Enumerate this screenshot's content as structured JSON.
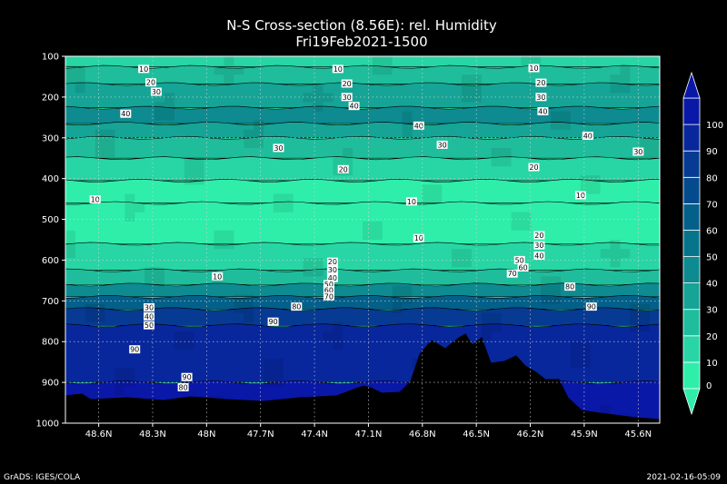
{
  "chart_data": {
    "type": "heatmap",
    "title": "N-S Cross-section (8.56E): rel. Humidity",
    "subtitle": "Fri19Feb2021-1500",
    "x_tick_labels": [
      "48.6N",
      "48.3N",
      "48N",
      "47.7N",
      "47.4N",
      "47.1N",
      "46.8N",
      "46.5N",
      "46.2N",
      "45.9N",
      "45.6N"
    ],
    "y_tick_labels": [
      "100",
      "200",
      "300",
      "400",
      "500",
      "600",
      "700",
      "800",
      "900",
      "1000"
    ],
    "ylim": [
      100,
      1000
    ],
    "y_inverted": true,
    "grid": true,
    "colorbar": {
      "ticks": [
        "0",
        "10",
        "20",
        "30",
        "40",
        "50",
        "60",
        "70",
        "80",
        "90",
        "100"
      ],
      "colors": [
        "#2eeeaa",
        "#27d6a4",
        "#1fbd9c",
        "#15a496",
        "#0d8b90",
        "#06758c",
        "#03608a",
        "#044b8e",
        "#063a93",
        "#08279c",
        "#0a18a8"
      ],
      "extend_both": true
    },
    "layers": [
      {
        "top": 100,
        "bottom": 126,
        "level": 1
      },
      {
        "top": 126,
        "bottom": 168,
        "level": 2
      },
      {
        "top": 168,
        "bottom": 226,
        "level": 3
      },
      {
        "top": 226,
        "bottom": 265,
        "level": 4
      },
      {
        "top": 265,
        "bottom": 300,
        "level": 3
      },
      {
        "top": 300,
        "bottom": 350,
        "level": 2
      },
      {
        "top": 350,
        "bottom": 405,
        "level": 1
      },
      {
        "top": 405,
        "bottom": 460,
        "level": 0
      },
      {
        "top": 460,
        "bottom": 560,
        "level": 0
      },
      {
        "top": 560,
        "bottom": 625,
        "level": 1
      },
      {
        "top": 625,
        "bottom": 660,
        "level": 2
      },
      {
        "top": 660,
        "bottom": 690,
        "level": 4
      },
      {
        "top": 690,
        "bottom": 720,
        "level": 6
      },
      {
        "top": 720,
        "bottom": 760,
        "level": 8
      },
      {
        "top": 760,
        "bottom": 900,
        "level": 9
      },
      {
        "top": 900,
        "bottom": 1000,
        "level": 10
      }
    ],
    "contour_labels": [
      {
        "text": "10",
        "x": 48.35,
        "p": 132
      },
      {
        "text": "10",
        "x": 47.27,
        "p": 132
      },
      {
        "text": "10",
        "x": 46.18,
        "p": 130
      },
      {
        "text": "20",
        "x": 48.31,
        "p": 165
      },
      {
        "text": "30",
        "x": 48.28,
        "p": 188
      },
      {
        "text": "20",
        "x": 47.22,
        "p": 168
      },
      {
        "text": "30",
        "x": 47.22,
        "p": 201
      },
      {
        "text": "40",
        "x": 47.18,
        "p": 223
      },
      {
        "text": "20",
        "x": 46.14,
        "p": 166
      },
      {
        "text": "30",
        "x": 46.14,
        "p": 201
      },
      {
        "text": "40",
        "x": 46.13,
        "p": 236
      },
      {
        "text": "40",
        "x": 48.45,
        "p": 242
      },
      {
        "text": "40",
        "x": 46.82,
        "p": 271
      },
      {
        "text": "30",
        "x": 46.69,
        "p": 318
      },
      {
        "text": "40",
        "x": 45.88,
        "p": 296
      },
      {
        "text": "30",
        "x": 45.6,
        "p": 335
      },
      {
        "text": "30",
        "x": 47.6,
        "p": 326
      },
      {
        "text": "20",
        "x": 47.24,
        "p": 378
      },
      {
        "text": "20",
        "x": 46.18,
        "p": 373
      },
      {
        "text": "10",
        "x": 48.62,
        "p": 452
      },
      {
        "text": "10",
        "x": 46.86,
        "p": 457
      },
      {
        "text": "10",
        "x": 45.92,
        "p": 442
      },
      {
        "text": "10",
        "x": 46.82,
        "p": 547
      },
      {
        "text": "20",
        "x": 46.15,
        "p": 540
      },
      {
        "text": "30",
        "x": 46.15,
        "p": 565
      },
      {
        "text": "40",
        "x": 46.15,
        "p": 590
      },
      {
        "text": "10",
        "x": 47.94,
        "p": 641
      },
      {
        "text": "20",
        "x": 47.3,
        "p": 605
      },
      {
        "text": "30",
        "x": 47.3,
        "p": 625
      },
      {
        "text": "40",
        "x": 47.3,
        "p": 645
      },
      {
        "text": "50",
        "x": 47.32,
        "p": 660
      },
      {
        "text": "60",
        "x": 47.32,
        "p": 675
      },
      {
        "text": "70",
        "x": 47.32,
        "p": 690
      },
      {
        "text": "80",
        "x": 47.5,
        "p": 715
      },
      {
        "text": "50",
        "x": 46.26,
        "p": 601
      },
      {
        "text": "60",
        "x": 46.24,
        "p": 619
      },
      {
        "text": "70",
        "x": 46.3,
        "p": 634
      },
      {
        "text": "80",
        "x": 45.98,
        "p": 666
      },
      {
        "text": "90",
        "x": 45.86,
        "p": 715
      },
      {
        "text": "30",
        "x": 48.32,
        "p": 717
      },
      {
        "text": "40",
        "x": 48.32,
        "p": 739
      },
      {
        "text": "50",
        "x": 48.32,
        "p": 761
      },
      {
        "text": "90",
        "x": 47.63,
        "p": 752
      },
      {
        "text": "90",
        "x": 48.4,
        "p": 820
      },
      {
        "text": "90",
        "x": 48.11,
        "p": 888
      },
      {
        "text": "80",
        "x": 48.13,
        "p": 913
      }
    ],
    "terrain_color": "#000000"
  },
  "footer": {
    "left": "GrADS: IGES/COLA",
    "right": "2021-02-16-05:09"
  }
}
